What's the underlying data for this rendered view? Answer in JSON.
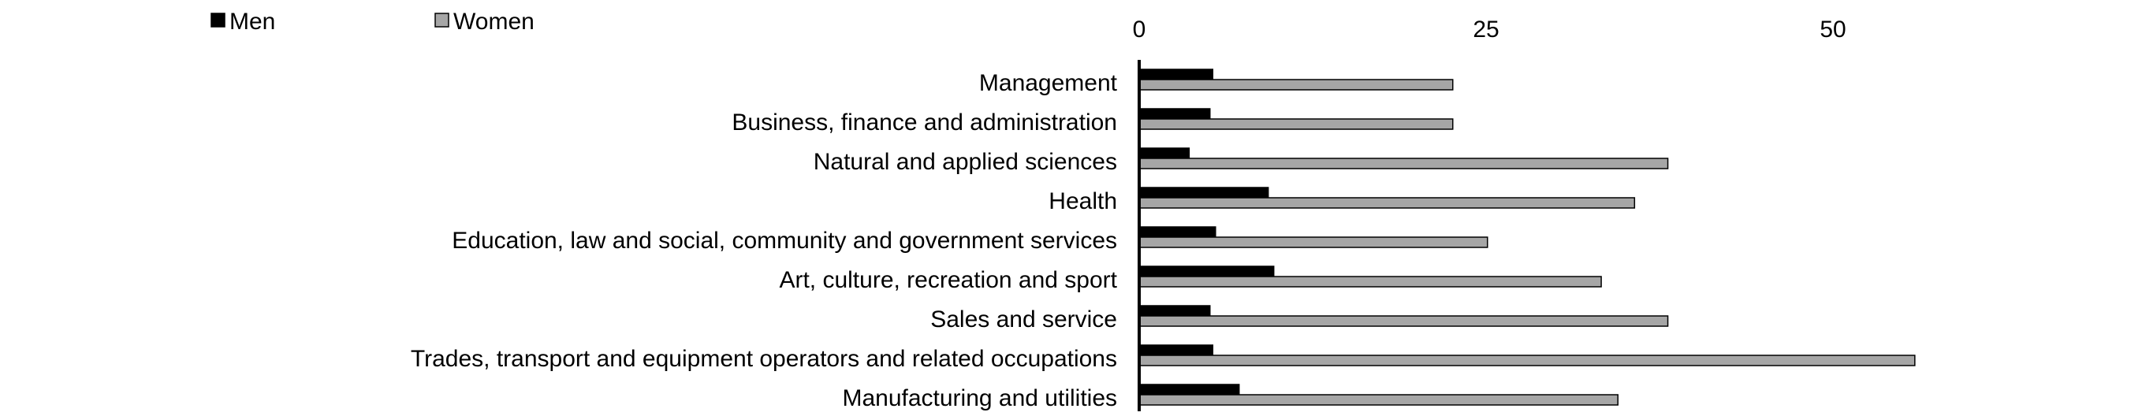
{
  "chart_data": {
    "type": "bar",
    "orientation": "horizontal",
    "categories": [
      "Management",
      "Business, finance and administration",
      "Natural and applied sciences",
      "Health",
      "Education, law and social, community and government services",
      "Art, culture, recreation and sport",
      "Sales and service",
      "Trades, transport and equipment operators and related occupations",
      "Manufacturing and utilities"
    ],
    "series": [
      {
        "name": "Men",
        "color": "#000000",
        "values": [
          5.3,
          5.1,
          3.6,
          9.3,
          5.5,
          9.7,
          5.1,
          5.3,
          7.2
        ]
      },
      {
        "name": "Women",
        "color": "#a6a6a6",
        "values": [
          22.6,
          22.6,
          38.1,
          35.7,
          25.1,
          33.3,
          38.1,
          55.9,
          34.5
        ]
      }
    ],
    "xticks": [
      "0",
      "25",
      "50"
    ],
    "xlim": [
      0,
      60
    ],
    "xaxis_position": "top",
    "grid": false,
    "legend_position": "top-left",
    "title": "",
    "xlabel": "",
    "ylabel": ""
  }
}
